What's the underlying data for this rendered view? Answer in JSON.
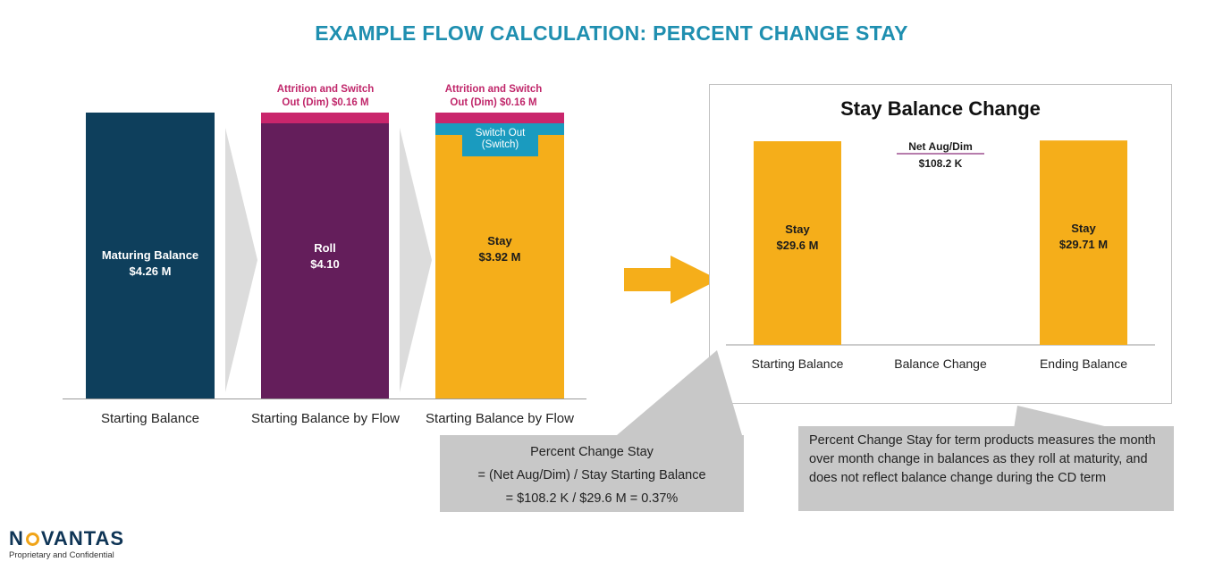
{
  "title": "EXAMPLE FLOW CALCULATION: PERCENT CHANGE STAY",
  "left_diagram": {
    "bars": [
      {
        "label": "Maturing Balance",
        "value": "$4.26 M",
        "category": "Starting Balance",
        "color": "#0e3f5c"
      },
      {
        "label": "Roll",
        "value": "$4.10",
        "category": "Starting Balance by Flow",
        "color": "#641e5b",
        "top_note": "Attrition and Switch Out (Dim) $0.16 M",
        "top_color": "#c9266c"
      },
      {
        "label": "Stay",
        "value": "$3.92 M",
        "category": "Starting Balance by Flow",
        "color": "#f5ae1a",
        "top_note": "Attrition and Switch Out (Dim) $0.16 M",
        "top_color": "#c9266c",
        "switch_label": "Switch Out (Switch)",
        "switch_color": "#1a9bbf"
      }
    ]
  },
  "chart_data": {
    "type": "bar",
    "title": "Stay Balance Change",
    "categories": [
      "Starting Balance",
      "Balance Change",
      "Ending Balance"
    ],
    "series": [
      {
        "values": [
          29.6,
          0.1082,
          29.71
        ]
      }
    ],
    "bar_labels": [
      {
        "name": "Stay",
        "value": "$29.6 M"
      },
      {
        "name": "",
        "value": ""
      },
      {
        "name": "Stay",
        "value": "$29.71 M"
      }
    ],
    "annotation": {
      "label": "Net Aug/Dim",
      "value": "$108.2 K"
    },
    "ylim": [
      0,
      30
    ],
    "colors": {
      "bar": "#f5ae1a",
      "annotation_line": "#8a2f7a"
    }
  },
  "formula_box": {
    "line1": "Percent Change Stay",
    "line2": "= (Net Aug/Dim) / Stay Starting Balance",
    "line3": "= $108.2 K / $29.6 M = 0.37%"
  },
  "note_box": {
    "text": "Percent Change Stay for term products measures the month over month change in balances as they roll at maturity, and does not reflect balance change during the CD term"
  },
  "footer": {
    "logo_left": "N",
    "logo_right": "VANTAS",
    "tagline": "Proprietary and Confidential"
  }
}
